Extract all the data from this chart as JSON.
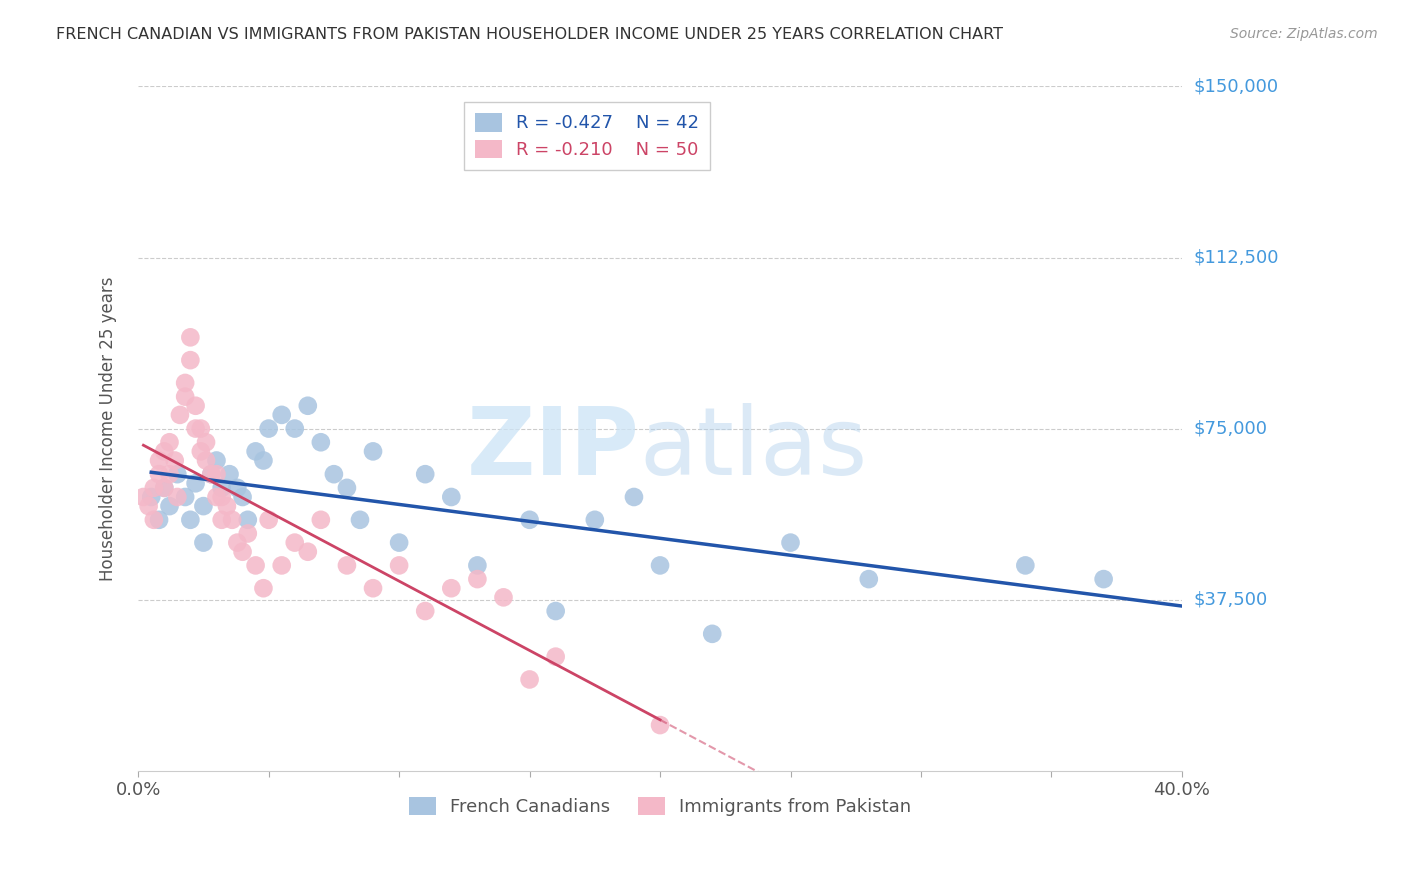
{
  "title": "FRENCH CANADIAN VS IMMIGRANTS FROM PAKISTAN HOUSEHOLDER INCOME UNDER 25 YEARS CORRELATION CHART",
  "source": "Source: ZipAtlas.com",
  "ylabel": "Householder Income Under 25 years",
  "xlim": [
    0.0,
    0.4
  ],
  "ylim": [
    0,
    150000
  ],
  "yticks": [
    0,
    37500,
    75000,
    112500,
    150000
  ],
  "xticks": [
    0.0,
    0.05,
    0.1,
    0.15,
    0.2,
    0.25,
    0.3,
    0.35,
    0.4
  ],
  "xtick_labels": [
    "0.0%",
    "",
    "",
    "",
    "",
    "",
    "",
    "",
    "40.0%"
  ],
  "blue_R": "-0.427",
  "blue_N": "42",
  "pink_R": "-0.210",
  "pink_N": "50",
  "blue_color": "#a8c4e0",
  "pink_color": "#f4b8c8",
  "blue_line_color": "#2255aa",
  "pink_line_color": "#cc4466",
  "legend_label_blue": "French Canadians",
  "legend_label_pink": "Immigrants from Pakistan",
  "blue_scatter_x": [
    0.005,
    0.008,
    0.01,
    0.012,
    0.015,
    0.018,
    0.02,
    0.022,
    0.025,
    0.025,
    0.028,
    0.03,
    0.032,
    0.035,
    0.038,
    0.04,
    0.042,
    0.045,
    0.048,
    0.05,
    0.055,
    0.06,
    0.065,
    0.07,
    0.075,
    0.08,
    0.085,
    0.09,
    0.1,
    0.11,
    0.12,
    0.13,
    0.15,
    0.16,
    0.175,
    0.19,
    0.2,
    0.22,
    0.25,
    0.28,
    0.34,
    0.37
  ],
  "blue_scatter_y": [
    60000,
    55000,
    62000,
    58000,
    65000,
    60000,
    55000,
    63000,
    58000,
    50000,
    65000,
    68000,
    62000,
    65000,
    62000,
    60000,
    55000,
    70000,
    68000,
    75000,
    78000,
    75000,
    80000,
    72000,
    65000,
    62000,
    55000,
    70000,
    50000,
    65000,
    60000,
    45000,
    55000,
    35000,
    55000,
    60000,
    45000,
    30000,
    50000,
    42000,
    45000,
    42000
  ],
  "pink_scatter_x": [
    0.002,
    0.004,
    0.006,
    0.006,
    0.008,
    0.008,
    0.01,
    0.01,
    0.012,
    0.012,
    0.014,
    0.015,
    0.016,
    0.018,
    0.018,
    0.02,
    0.02,
    0.022,
    0.022,
    0.024,
    0.024,
    0.026,
    0.026,
    0.028,
    0.03,
    0.03,
    0.032,
    0.032,
    0.034,
    0.036,
    0.038,
    0.04,
    0.042,
    0.045,
    0.048,
    0.05,
    0.055,
    0.06,
    0.065,
    0.07,
    0.08,
    0.09,
    0.1,
    0.11,
    0.12,
    0.13,
    0.14,
    0.15,
    0.16,
    0.2
  ],
  "pink_scatter_y": [
    60000,
    58000,
    62000,
    55000,
    68000,
    65000,
    70000,
    62000,
    72000,
    65000,
    68000,
    60000,
    78000,
    82000,
    85000,
    90000,
    95000,
    75000,
    80000,
    70000,
    75000,
    68000,
    72000,
    65000,
    60000,
    65000,
    60000,
    55000,
    58000,
    55000,
    50000,
    48000,
    52000,
    45000,
    40000,
    55000,
    45000,
    50000,
    48000,
    55000,
    45000,
    40000,
    45000,
    35000,
    40000,
    42000,
    38000,
    20000,
    25000,
    10000
  ]
}
